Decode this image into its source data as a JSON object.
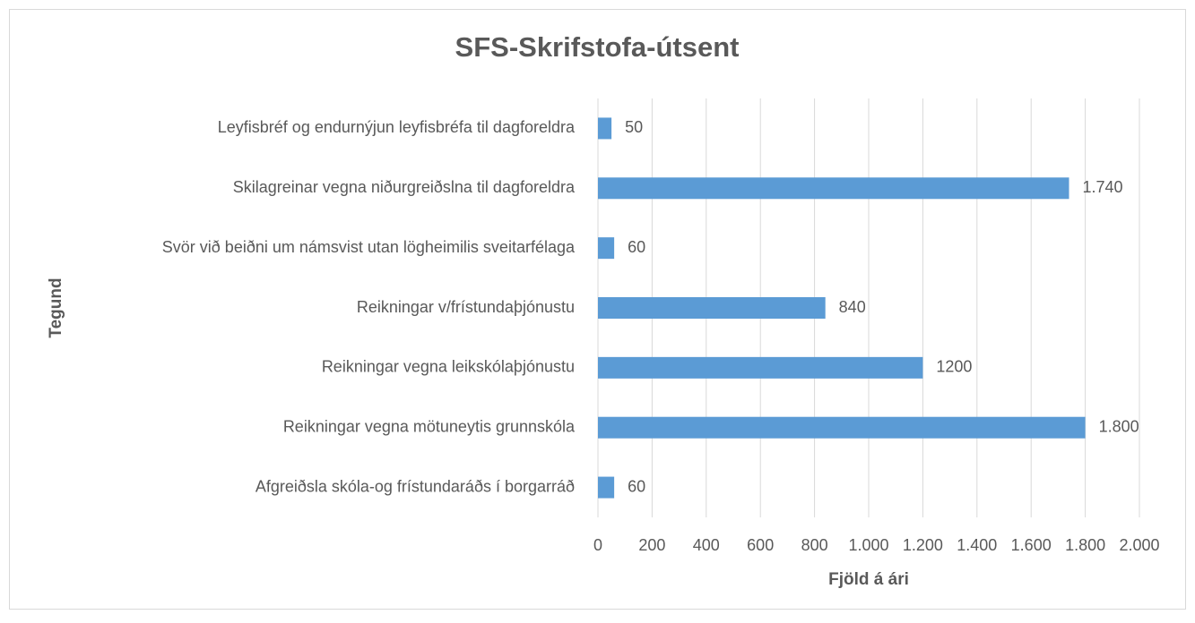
{
  "chart_data": {
    "type": "barh",
    "title": "SFS-Skrifstofa-útsent",
    "x_label": "Fjöld á ári",
    "y_label": "Tegund",
    "categories": [
      "Leyfisbréf og endurnýjun leyfisbréfa til dagforeldra",
      "Skilagreinar vegna niðurgreiðslna til dagforeldra",
      "Svör við beiðni um námsvist utan lögheimilis sveitarfélaga",
      "Reikningar v/frístundaþjónustu",
      "Reikningar vegna leikskólaþjónustu",
      "Reikningar vegna mötuneytis grunnskóla",
      "Afgreiðsla skóla-og frístundaráðs í borgarráð"
    ],
    "values": [
      50,
      1740,
      60,
      840,
      1200,
      1800,
      60
    ],
    "value_labels": [
      "50",
      "1.740",
      "60",
      "840",
      "1200",
      "1.800",
      "60"
    ],
    "color": "#5b9bd5",
    "xlim": [
      0,
      2000
    ],
    "xticks": [
      0,
      200,
      400,
      600,
      800,
      {
        "value": 1000,
        "label": "1.000"
      },
      {
        "value": 1200,
        "label": "1.200"
      },
      {
        "value": 1400,
        "label": "1.400"
      },
      {
        "value": 1600,
        "label": "1.600"
      },
      {
        "value": 1800,
        "label": "1.800"
      },
      {
        "value": 2000,
        "label": "2.000"
      }
    ],
    "grid": true
  }
}
